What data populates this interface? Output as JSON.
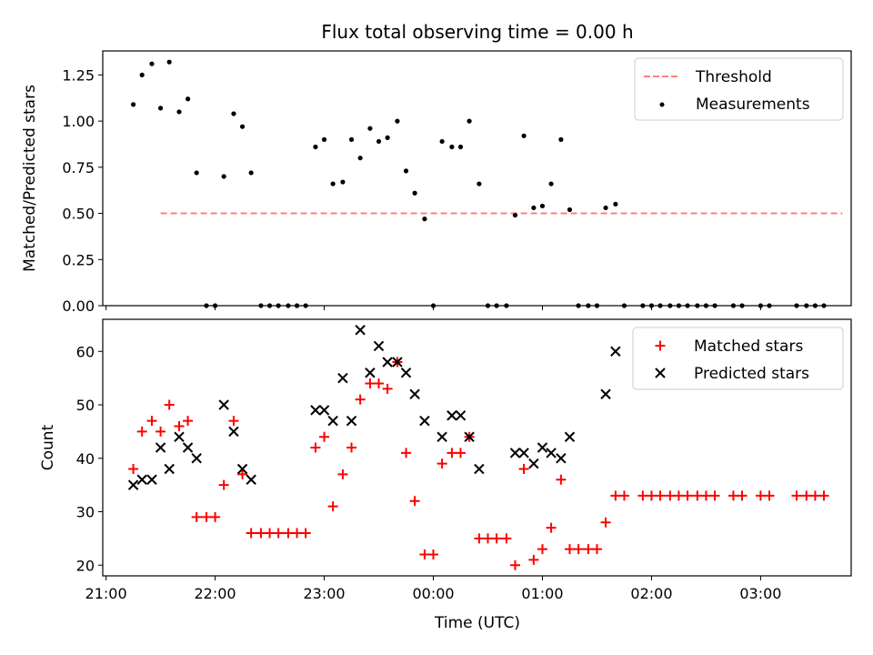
{
  "title": "Flux total observing time = 0.00 h",
  "chart_data": [
    {
      "type": "scatter",
      "ylabel": "Matched/Predicted stars",
      "ylim": [
        0,
        1.38
      ],
      "yticks": [
        0,
        0.25,
        0.5,
        0.75,
        1.0,
        1.25
      ],
      "yticklabels": [
        "0.00",
        "0.25",
        "0.50",
        "0.75",
        "1.00",
        "1.25"
      ],
      "legend_position": "top-right",
      "threshold": {
        "name": "Threshold",
        "value": 0.5,
        "x_range": [
          21.5,
          27.75
        ],
        "color": "#ff7f7f"
      },
      "series": [
        {
          "name": "Measurements",
          "color": "#000000",
          "marker": "dot",
          "x": [
            21.25,
            21.33,
            21.42,
            21.5,
            21.58,
            21.67,
            21.75,
            21.83,
            21.92,
            22.0,
            22.08,
            22.17,
            22.25,
            22.33,
            22.42,
            22.5,
            22.58,
            22.67,
            22.75,
            22.83,
            22.92,
            23.0,
            23.08,
            23.17,
            23.25,
            23.33,
            23.42,
            23.5,
            23.58,
            23.67,
            23.75,
            23.83,
            23.92,
            24.0,
            24.08,
            24.17,
            24.25,
            24.33,
            24.42,
            24.5,
            24.58,
            24.67,
            24.75,
            24.83,
            24.92,
            25.0,
            25.08,
            25.17,
            25.25,
            25.33,
            25.42,
            25.5,
            25.58,
            25.67,
            25.75,
            25.92,
            26.0,
            26.08,
            26.17,
            26.25,
            26.33,
            26.42,
            26.5,
            26.58,
            26.75,
            26.83,
            27.0,
            27.08,
            27.33,
            27.42,
            27.5,
            27.58
          ],
          "y": [
            1.09,
            1.25,
            1.31,
            1.07,
            1.32,
            1.05,
            1.12,
            0.72,
            0.0,
            0.0,
            0.7,
            1.04,
            0.97,
            0.72,
            0.0,
            0.0,
            0.0,
            0.0,
            0.0,
            0.0,
            0.86,
            0.9,
            0.66,
            0.67,
            0.9,
            0.8,
            0.96,
            0.89,
            0.91,
            1.0,
            0.73,
            0.61,
            0.47,
            0.0,
            0.89,
            0.86,
            0.86,
            1.0,
            0.66,
            0.0,
            0.0,
            0.0,
            0.49,
            0.92,
            0.53,
            0.54,
            0.66,
            0.9,
            0.52,
            0.0,
            0.0,
            0.0,
            0.53,
            0.55,
            0.0,
            0.0,
            0.0,
            0.0,
            0.0,
            0.0,
            0.0,
            0.0,
            0.0,
            0.0,
            0.0,
            0.0,
            0.0,
            0.0,
            0.0,
            0.0,
            0.0,
            0.0
          ]
        }
      ]
    },
    {
      "type": "scatter",
      "ylabel": "Count",
      "xlabel": "Time (UTC)",
      "ylim": [
        18,
        66
      ],
      "yticks": [
        20,
        30,
        40,
        50,
        60
      ],
      "xlim": [
        20.97,
        27.83
      ],
      "xticks": [
        21,
        22,
        23,
        24,
        25,
        26,
        27
      ],
      "xticklabels": [
        "21:00",
        "22:00",
        "23:00",
        "00:00",
        "01:00",
        "02:00",
        "03:00"
      ],
      "legend_position": "top-right",
      "series": [
        {
          "name": "Matched stars",
          "color": "#ff0000",
          "marker": "plus",
          "x": [
            21.25,
            21.33,
            21.42,
            21.5,
            21.58,
            21.67,
            21.75,
            21.83,
            21.92,
            22.0,
            22.08,
            22.17,
            22.25,
            22.33,
            22.42,
            22.5,
            22.58,
            22.67,
            22.75,
            22.83,
            22.92,
            23.0,
            23.08,
            23.17,
            23.25,
            23.33,
            23.42,
            23.5,
            23.58,
            23.67,
            23.75,
            23.83,
            23.92,
            24.0,
            24.08,
            24.17,
            24.25,
            24.33,
            24.42,
            24.5,
            24.58,
            24.67,
            24.75,
            24.83,
            24.92,
            25.0,
            25.08,
            25.17,
            25.25,
            25.33,
            25.42,
            25.5,
            25.58,
            25.67,
            25.75,
            25.92,
            26.0,
            26.08,
            26.17,
            26.25,
            26.33,
            26.42,
            26.5,
            26.58,
            26.75,
            26.83,
            27.0,
            27.08,
            27.33,
            27.42,
            27.5,
            27.58
          ],
          "y": [
            38,
            45,
            47,
            45,
            50,
            46,
            47,
            29,
            29,
            29,
            35,
            47,
            37,
            26,
            26,
            26,
            26,
            26,
            26,
            26,
            42,
            44,
            31,
            37,
            42,
            51,
            54,
            54,
            53,
            58,
            41,
            32,
            22,
            22,
            39,
            41,
            41,
            44,
            25,
            25,
            25,
            25,
            20,
            38,
            21,
            23,
            27,
            36,
            23,
            23,
            23,
            23,
            28,
            33,
            33,
            33,
            33,
            33,
            33,
            33,
            33,
            33,
            33,
            33,
            33,
            33,
            33,
            33,
            33,
            33,
            33,
            33
          ]
        },
        {
          "name": "Predicted stars",
          "color": "#000000",
          "marker": "x",
          "x": [
            21.25,
            21.33,
            21.42,
            21.5,
            21.58,
            21.67,
            21.75,
            21.83,
            22.08,
            22.17,
            22.25,
            22.33,
            22.92,
            23.0,
            23.08,
            23.17,
            23.25,
            23.33,
            23.42,
            23.5,
            23.58,
            23.67,
            23.75,
            23.83,
            23.92,
            24.08,
            24.17,
            24.25,
            24.33,
            24.42,
            24.75,
            24.83,
            24.92,
            25.0,
            25.08,
            25.17,
            25.25,
            25.58,
            25.67
          ],
          "y": [
            35,
            36,
            36,
            42,
            38,
            44,
            42,
            40,
            50,
            45,
            38,
            36,
            49,
            49,
            47,
            55,
            47,
            64,
            56,
            61,
            58,
            58,
            56,
            52,
            47,
            44,
            48,
            48,
            44,
            38,
            41,
            41,
            39,
            42,
            41,
            40,
            44,
            52,
            60
          ]
        }
      ]
    }
  ]
}
